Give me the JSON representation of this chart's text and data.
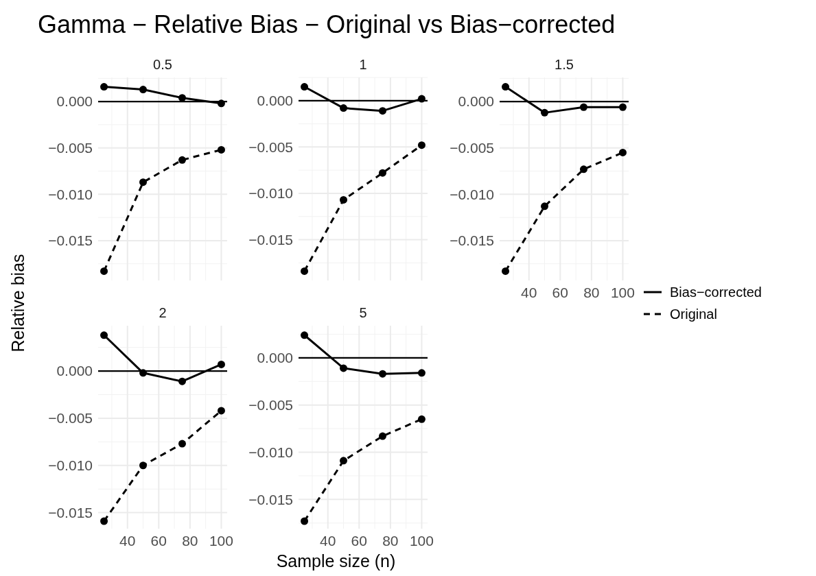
{
  "chart_data": [
    {
      "type": "line",
      "title": "Gamma − Relative Bias − Original vs Bias−corrected",
      "subtitle": "0.5",
      "ylabel": "Relative bias",
      "legend": "right",
      "x": [
        25,
        50,
        75,
        100
      ],
      "xlim": [
        21.25,
        103.75
      ],
      "xticks": [
        40,
        60,
        80,
        100
      ],
      "ylim": [
        -0.0193,
        0.0026
      ],
      "yticks": [
        {
          "value": -0.015,
          "label": "−0.015"
        },
        {
          "value": -0.01,
          "label": "−0.010"
        },
        {
          "value": -0.005,
          "label": "−0.005"
        },
        {
          "value": 0,
          "label": "0.000"
        }
      ],
      "grid": true,
      "marker": "circle",
      "tick_labels": "y",
      "ref_lines": [
        {
          "axis": "y",
          "value": 0,
          "color": "#000000"
        }
      ],
      "series": [
        {
          "name": "Bias−corrected",
          "color": "#000000",
          "line_style": "solid",
          "values": [
            0.0016,
            0.0013,
            0.0004,
            -0.0002
          ]
        },
        {
          "name": "Original",
          "color": "#000000",
          "line_style": "dashed",
          "values": [
            -0.0183,
            -0.0087,
            -0.0063,
            -0.0052
          ]
        }
      ]
    },
    {
      "type": "line",
      "subtitle": "1",
      "x": [
        25,
        50,
        75,
        100
      ],
      "xlim": [
        21.25,
        103.75
      ],
      "xticks": [
        40,
        60,
        80,
        100
      ],
      "ylim": [
        -0.0194,
        0.0025
      ],
      "yticks": [
        {
          "value": -0.015,
          "label": "−0.015"
        },
        {
          "value": -0.01,
          "label": "−0.010"
        },
        {
          "value": -0.005,
          "label": "−0.005"
        },
        {
          "value": 0,
          "label": "0.000"
        }
      ],
      "grid": true,
      "marker": "circle",
      "tick_labels": "y",
      "ref_lines": [
        {
          "axis": "y",
          "value": 0,
          "color": "#000000"
        }
      ],
      "series": [
        {
          "color": "#000000",
          "line_style": "solid",
          "values": [
            0.0015,
            -0.0008,
            -0.0011,
            0.0002
          ]
        },
        {
          "color": "#000000",
          "line_style": "dashed",
          "values": [
            -0.0184,
            -0.0107,
            -0.0078,
            -0.0048
          ]
        }
      ]
    },
    {
      "type": "line",
      "subtitle": "1.5",
      "x": [
        25,
        50,
        75,
        100
      ],
      "xlim": [
        21.25,
        103.75
      ],
      "xticks": [
        40,
        60,
        80,
        100
      ],
      "ylim": [
        -0.0193,
        0.0026
      ],
      "yticks": [
        {
          "value": -0.015,
          "label": "−0.015"
        },
        {
          "value": -0.01,
          "label": "−0.010"
        },
        {
          "value": -0.005,
          "label": "−0.005"
        },
        {
          "value": 0,
          "label": "0.000"
        }
      ],
      "grid": true,
      "marker": "circle",
      "ref_lines": [
        {
          "axis": "y",
          "value": 0,
          "color": "#000000"
        }
      ],
      "series": [
        {
          "color": "#000000",
          "line_style": "solid",
          "values": [
            0.0016,
            -0.0012,
            -0.0006,
            -0.0006
          ]
        },
        {
          "color": "#000000",
          "line_style": "dashed",
          "values": [
            -0.0183,
            -0.0113,
            -0.0073,
            -0.0055
          ]
        }
      ]
    },
    {
      "type": "line",
      "subtitle": "2",
      "x": [
        25,
        50,
        75,
        100
      ],
      "xlim": [
        21.25,
        103.75
      ],
      "xticks": [
        40,
        60,
        80,
        100
      ],
      "ylim": [
        -0.0167,
        0.0048
      ],
      "yticks": [
        {
          "value": -0.015,
          "label": "−0.015"
        },
        {
          "value": -0.01,
          "label": "−0.010"
        },
        {
          "value": -0.005,
          "label": "−0.005"
        },
        {
          "value": 0,
          "label": "0.000"
        }
      ],
      "grid": true,
      "marker": "circle",
      "ref_lines": [
        {
          "axis": "y",
          "value": 0,
          "color": "#000000"
        }
      ],
      "series": [
        {
          "color": "#000000",
          "line_style": "solid",
          "values": [
            0.0038,
            -0.0002,
            -0.0011,
            0.0007
          ]
        },
        {
          "color": "#000000",
          "line_style": "dashed",
          "values": [
            -0.0159,
            -0.01,
            -0.0077,
            -0.0042
          ]
        }
      ]
    },
    {
      "type": "line",
      "subtitle": "5",
      "xlabel": "Sample size (n)",
      "x": [
        25,
        50,
        75,
        100
      ],
      "xlim": [
        21.25,
        103.75
      ],
      "xticks": [
        40,
        60,
        80,
        100
      ],
      "ylim": [
        -0.0181,
        0.0034
      ],
      "yticks": [
        {
          "value": -0.015,
          "label": "−0.015"
        },
        {
          "value": -0.01,
          "label": "−0.010"
        },
        {
          "value": -0.005,
          "label": "−0.005"
        },
        {
          "value": 0,
          "label": "0.000"
        }
      ],
      "grid": true,
      "marker": "circle",
      "ref_lines": [
        {
          "axis": "y",
          "value": 0,
          "color": "#000000"
        }
      ],
      "series": [
        {
          "color": "#000000",
          "line_style": "solid",
          "values": [
            0.0024,
            -0.0011,
            -0.0017,
            -0.0016
          ]
        },
        {
          "color": "#000000",
          "line_style": "dashed",
          "values": [
            -0.0173,
            -0.0109,
            -0.0083,
            -0.0065
          ]
        }
      ]
    }
  ]
}
